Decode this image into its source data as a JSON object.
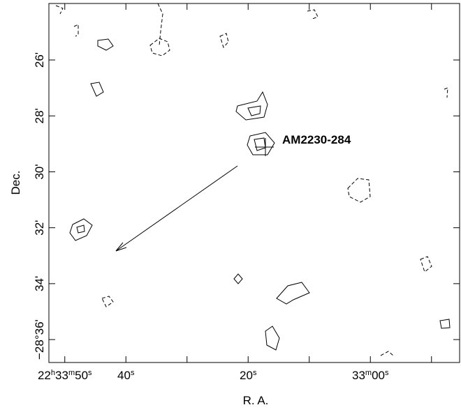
{
  "chart_data": {
    "type": "contour",
    "x_label": "R. A.",
    "y_label": "Dec.",
    "annotation": "AM2230-284",
    "xlim": [
      112.6,
      45.4
    ],
    "xticks": [
      {
        "value": 110,
        "label": "22h33m50s"
      },
      {
        "value": 100,
        "label": "40s"
      },
      {
        "value": 80,
        "label": "20s"
      },
      {
        "value": 60,
        "label": "33m00s"
      }
    ],
    "xminorticks": [
      90,
      70,
      50
    ],
    "ylim": [
      23.98,
      36.82
    ],
    "yticks": [
      {
        "value": 26,
        "label": "26'"
      },
      {
        "value": 28,
        "label": "28'"
      },
      {
        "value": 30,
        "label": "30'"
      },
      {
        "value": 32,
        "label": "32'"
      },
      {
        "value": 34,
        "label": "34'"
      },
      {
        "value": 36,
        "label": "−28°36'"
      }
    ],
    "grid": false
  }
}
